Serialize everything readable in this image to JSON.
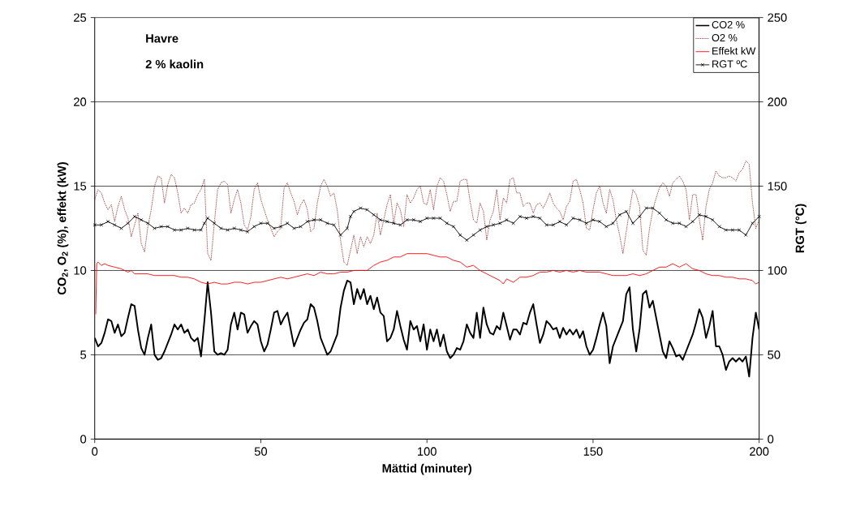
{
  "chart_data": {
    "type": "line",
    "xlabel": "Mättid (minuter)",
    "ylabel": "CO$_{2}$, O$_{2}$ (%), effekt (kW)",
    "y2label": "RGT (°C)",
    "annotations": [
      "Havre",
      "2 % kaolin"
    ],
    "x": [
      0,
      1,
      2,
      3,
      4,
      5,
      6,
      7,
      8,
      9,
      10,
      11,
      12,
      13,
      14,
      15,
      16,
      17,
      18,
      19,
      20,
      21,
      22,
      23,
      24,
      25,
      26,
      27,
      28,
      29,
      30,
      31,
      32,
      33,
      34,
      35,
      36,
      37,
      38,
      39,
      40,
      41,
      42,
      43,
      44,
      45,
      46,
      47,
      48,
      49,
      50,
      51,
      52,
      53,
      54,
      55,
      56,
      57,
      58,
      59,
      60,
      61,
      62,
      63,
      64,
      65,
      66,
      67,
      68,
      69,
      70,
      71,
      72,
      73,
      74,
      75,
      76,
      77,
      78,
      79,
      80,
      81,
      82,
      83,
      84,
      85,
      86,
      87,
      88,
      89,
      90,
      91,
      92,
      93,
      94,
      95,
      96,
      97,
      98,
      99,
      100,
      101,
      102,
      103,
      104,
      105,
      106,
      107,
      108,
      109,
      110,
      111,
      112,
      113,
      114,
      115,
      116,
      117,
      118,
      119,
      120,
      121,
      122,
      123,
      124,
      125,
      126,
      127,
      128,
      129,
      130,
      131,
      132,
      133,
      134,
      135,
      136,
      137,
      138,
      139,
      140,
      141,
      142,
      143,
      144,
      145,
      146,
      147,
      148,
      149,
      150,
      151,
      152,
      153,
      154,
      155,
      156,
      157,
      158,
      159,
      160,
      161,
      162,
      163,
      164,
      165,
      166,
      167,
      168,
      169,
      170,
      171,
      172,
      173,
      174,
      175,
      176,
      177,
      178,
      179,
      180,
      181,
      182,
      183,
      184,
      185,
      186,
      187,
      188,
      189,
      190,
      191,
      192,
      193,
      194,
      195,
      196,
      197,
      198,
      199,
      200
    ],
    "series": [
      {
        "name": "CO2 %",
        "color": "#000000",
        "marker": "none",
        "line_style": "solid",
        "values": [
          6.0,
          5.5,
          5.7,
          6.3,
          7.1,
          7.0,
          6.3,
          6.8,
          6.1,
          6.3,
          7.2,
          8.0,
          7.9,
          6.5,
          5.4,
          5.0,
          6.0,
          6.8,
          5.0,
          4.7,
          4.8,
          5.2,
          5.7,
          6.2,
          6.8,
          6.5,
          6.8,
          6.3,
          6.5,
          6.0,
          5.8,
          6.0,
          4.9,
          7.0,
          9.3,
          7.5,
          5.2,
          5.0,
          5.1,
          5.0,
          5.3,
          6.8,
          7.5,
          6.5,
          7.5,
          7.4,
          6.3,
          6.7,
          7.0,
          6.8,
          5.8,
          5.2,
          5.6,
          6.5,
          7.5,
          7.6,
          6.8,
          7.2,
          7.5,
          6.5,
          5.5,
          6.0,
          6.5,
          6.9,
          7.1,
          8.0,
          7.8,
          7.0,
          6.0,
          5.5,
          5.0,
          5.2,
          5.7,
          6.2,
          7.8,
          8.8,
          9.4,
          9.3,
          8.0,
          8.9,
          8.3,
          8.9,
          8.0,
          8.5,
          7.7,
          8.4,
          7.5,
          7.3,
          5.8,
          6.0,
          6.5,
          7.6,
          6.7,
          5.9,
          5.3,
          7.0,
          6.5,
          6.7,
          5.8,
          6.8,
          5.3,
          6.5,
          5.8,
          6.5,
          5.5,
          6.2,
          5.2,
          4.8,
          5.0,
          5.4,
          5.3,
          5.8,
          6.8,
          6.3,
          6.0,
          7.5,
          6.0,
          7.8,
          6.8,
          6.3,
          6.2,
          6.7,
          6.5,
          7.5,
          6.7,
          5.9,
          6.5,
          6.5,
          6.2,
          6.9,
          6.8,
          7.5,
          8.0,
          6.8,
          5.7,
          6.2,
          7.0,
          6.8,
          6.5,
          6.6,
          6.0,
          6.6,
          6.2,
          6.5,
          6.2,
          6.5,
          6.0,
          6.4,
          5.5,
          5.0,
          5.3,
          6.0,
          6.8,
          7.5,
          6.7,
          4.5,
          5.5,
          6.0,
          6.5,
          7.0,
          8.6,
          9.0,
          6.5,
          5.2,
          6.5,
          8.6,
          8.8,
          7.8,
          8.2,
          7.2,
          6.2,
          5.2,
          4.8,
          5.8,
          5.4,
          4.9,
          5.0,
          4.7,
          5.2,
          5.7,
          6.2,
          6.9,
          7.7,
          7.2,
          6.0,
          6.7,
          7.6,
          5.5,
          5.5,
          5.0,
          4.1,
          4.6,
          4.8,
          4.6,
          4.8,
          4.6,
          4.9,
          3.7,
          6.0,
          7.5,
          6.5
        ]
      },
      {
        "name": "O2 %",
        "color": "#800000",
        "marker": "none",
        "line_style": "dotted",
        "values": [
          14.2,
          14.8,
          14.6,
          14.0,
          13.6,
          13.9,
          12.9,
          13.8,
          14.4,
          13.6,
          13.1,
          12.0,
          12.7,
          13.4,
          11.6,
          11.1,
          12.6,
          13.6,
          15.0,
          15.6,
          15.5,
          14.0,
          15.1,
          15.7,
          15.5,
          14.6,
          13.4,
          13.7,
          13.4,
          13.9,
          14.0,
          14.5,
          14.8,
          15.4,
          11.0,
          10.6,
          12.8,
          14.8,
          15.2,
          15.3,
          15.1,
          13.4,
          14.2,
          14.8,
          14.0,
          12.7,
          12.4,
          13.2,
          14.8,
          15.2,
          14.2,
          13.6,
          13.0,
          12.5,
          12.0,
          12.3,
          12.5,
          14.9,
          15.2,
          14.6,
          14.1,
          13.3,
          13.9,
          14.2,
          13.6,
          12.3,
          12.5,
          14.0,
          15.0,
          15.4,
          15.0,
          14.4,
          14.6,
          13.6,
          11.8,
          10.5,
          10.3,
          11.2,
          12.1,
          11.0,
          12.0,
          11.4,
          12.0,
          11.6,
          12.1,
          13.4,
          12.1,
          13.0,
          13.9,
          14.5,
          12.8,
          14.0,
          13.6,
          12.6,
          14.5,
          14.0,
          14.3,
          14.8,
          15.0,
          14.0,
          13.9,
          14.8,
          13.6,
          15.0,
          15.5,
          15.3,
          14.5,
          13.5,
          14.1,
          14.1,
          15.3,
          15.4,
          15.4,
          14.1,
          13.0,
          12.8,
          14.0,
          13.5,
          11.8,
          13.0,
          13.5,
          14.8,
          13.0,
          14.3,
          14.0,
          15.4,
          15.5,
          14.6,
          14.6,
          13.8,
          14.0,
          14.0,
          13.4,
          13.9,
          14.0,
          13.7,
          14.1,
          14.6,
          14.0,
          13.7,
          13.5,
          13.0,
          13.8,
          14.1,
          15.3,
          15.4,
          14.8,
          14.0,
          12.5,
          12.4,
          13.6,
          14.6,
          15.0,
          14.0,
          13.4,
          14.8,
          14.2,
          13.0,
          12.1,
          11.0,
          12.3,
          13.6,
          14.8,
          14.5,
          13.8,
          11.2,
          10.9,
          12.5,
          13.6,
          14.3,
          14.9,
          15.2,
          15.0,
          14.4,
          15.2,
          15.4,
          15.6,
          15.3,
          14.8,
          13.0,
          14.5,
          14.5,
          13.0,
          11.8,
          13.8,
          14.8,
          15.2,
          15.9,
          15.6,
          15.5,
          15.5,
          15.6,
          15.5,
          15.3,
          15.8,
          16.0,
          16.5,
          16.3,
          14.0,
          12.5,
          13.0
        ]
      },
      {
        "name": "Effekt kW",
        "color": "#ff0000",
        "marker": "none",
        "line_style": "solid",
        "x": [
          0.3,
          0.6,
          1,
          2,
          3,
          4,
          6,
          8,
          10,
          11,
          12,
          14,
          16,
          18,
          20,
          22,
          24,
          26,
          28,
          30,
          32,
          34,
          36,
          38,
          40,
          42,
          44,
          46,
          48,
          50,
          52,
          54,
          56,
          58,
          60,
          62,
          64,
          66,
          68,
          70,
          72,
          74,
          76,
          78,
          80,
          82,
          84,
          86,
          88,
          90,
          92,
          94,
          96,
          98,
          100,
          102,
          104,
          106,
          108,
          110,
          112,
          114,
          116,
          118,
          120,
          122,
          123,
          124,
          126,
          128,
          130,
          132,
          134,
          136,
          138,
          140,
          142,
          144,
          146,
          148,
          150,
          152,
          154,
          156,
          158,
          160,
          162,
          164,
          166,
          168,
          170,
          172,
          174,
          176,
          178,
          180,
          182,
          184,
          186,
          188,
          190,
          192,
          194,
          196,
          198,
          199,
          200
        ],
        "values": [
          7.4,
          10.4,
          10.5,
          10.3,
          10.4,
          10.3,
          10.2,
          10.1,
          9.9,
          10.0,
          9.8,
          9.8,
          9.8,
          9.7,
          9.7,
          9.7,
          9.7,
          9.6,
          9.6,
          9.5,
          9.3,
          9.2,
          9.3,
          9.2,
          9.2,
          9.3,
          9.3,
          9.2,
          9.3,
          9.3,
          9.4,
          9.5,
          9.6,
          9.5,
          9.6,
          9.7,
          9.8,
          9.7,
          9.9,
          9.8,
          9.8,
          9.9,
          9.9,
          10.0,
          10.0,
          10.0,
          10.3,
          10.5,
          10.6,
          10.8,
          10.8,
          11.0,
          11.0,
          11.0,
          11.0,
          10.9,
          10.8,
          10.8,
          10.6,
          10.5,
          10.2,
          10.3,
          10.0,
          9.8,
          9.6,
          9.4,
          9.2,
          9.5,
          9.3,
          9.6,
          9.6,
          9.7,
          9.9,
          9.9,
          10.0,
          9.9,
          10.0,
          9.9,
          10.0,
          9.9,
          9.9,
          9.9,
          9.8,
          9.7,
          9.7,
          9.7,
          9.8,
          9.7,
          9.8,
          10.0,
          10.2,
          10.2,
          10.4,
          10.2,
          10.4,
          10.1,
          10.0,
          9.8,
          9.7,
          9.7,
          9.6,
          9.6,
          9.5,
          9.5,
          9.4,
          9.2,
          9.3
        ]
      },
      {
        "name": "RGT ºC",
        "color": "#000000",
        "marker": "cross",
        "line_style": "solid",
        "axis": "y2",
        "x": [
          0,
          2,
          4,
          6,
          8,
          10,
          12,
          14,
          16,
          18,
          20,
          22,
          24,
          26,
          28,
          30,
          32,
          33,
          34,
          36,
          38,
          40,
          42,
          44,
          46,
          48,
          50,
          52,
          54,
          56,
          58,
          60,
          62,
          64,
          66,
          68,
          70,
          72,
          74,
          76,
          77,
          78,
          80,
          82,
          84,
          86,
          88,
          90,
          92,
          94,
          96,
          98,
          100,
          102,
          104,
          106,
          108,
          110,
          112,
          114,
          116,
          118,
          120,
          122,
          124,
          126,
          128,
          130,
          132,
          134,
          136,
          138,
          140,
          142,
          144,
          146,
          148,
          150,
          152,
          154,
          156,
          158,
          160,
          162,
          164,
          166,
          168,
          170,
          172,
          174,
          176,
          178,
          180,
          182,
          184,
          186,
          188,
          190,
          192,
          194,
          196,
          198,
          200
        ],
        "values": [
          127,
          127,
          129,
          127,
          125,
          128,
          132,
          130,
          128,
          125,
          126,
          126,
          124,
          124,
          125,
          124,
          124,
          128,
          131,
          128,
          125,
          124,
          125,
          124,
          123,
          126,
          128,
          128,
          125,
          126,
          128,
          125,
          126,
          129,
          130,
          130,
          128,
          127,
          121,
          125,
          132,
          135,
          137,
          136,
          133,
          130,
          129,
          128,
          127,
          130,
          130,
          129,
          131,
          131,
          131,
          128,
          126,
          121,
          118,
          121,
          124,
          126,
          127,
          128,
          130,
          128,
          132,
          131,
          132,
          131,
          127,
          127,
          129,
          127,
          131,
          130,
          128,
          130,
          129,
          126,
          128,
          133,
          135,
          128,
          132,
          137,
          137,
          134,
          130,
          128,
          128,
          126,
          129,
          133,
          132,
          130,
          126,
          124,
          124,
          124,
          121,
          128,
          132
        ]
      }
    ],
    "xlim": [
      0,
      200
    ],
    "xticks": [
      0,
      50,
      100,
      150,
      200
    ],
    "ylim": [
      0,
      25
    ],
    "yticks": [
      0,
      5,
      10,
      15,
      20,
      25
    ],
    "y2lim": [
      0,
      250
    ],
    "y2ticks": [
      0,
      50,
      100,
      150,
      200,
      250
    ],
    "grid": "y",
    "legend": "top right"
  }
}
